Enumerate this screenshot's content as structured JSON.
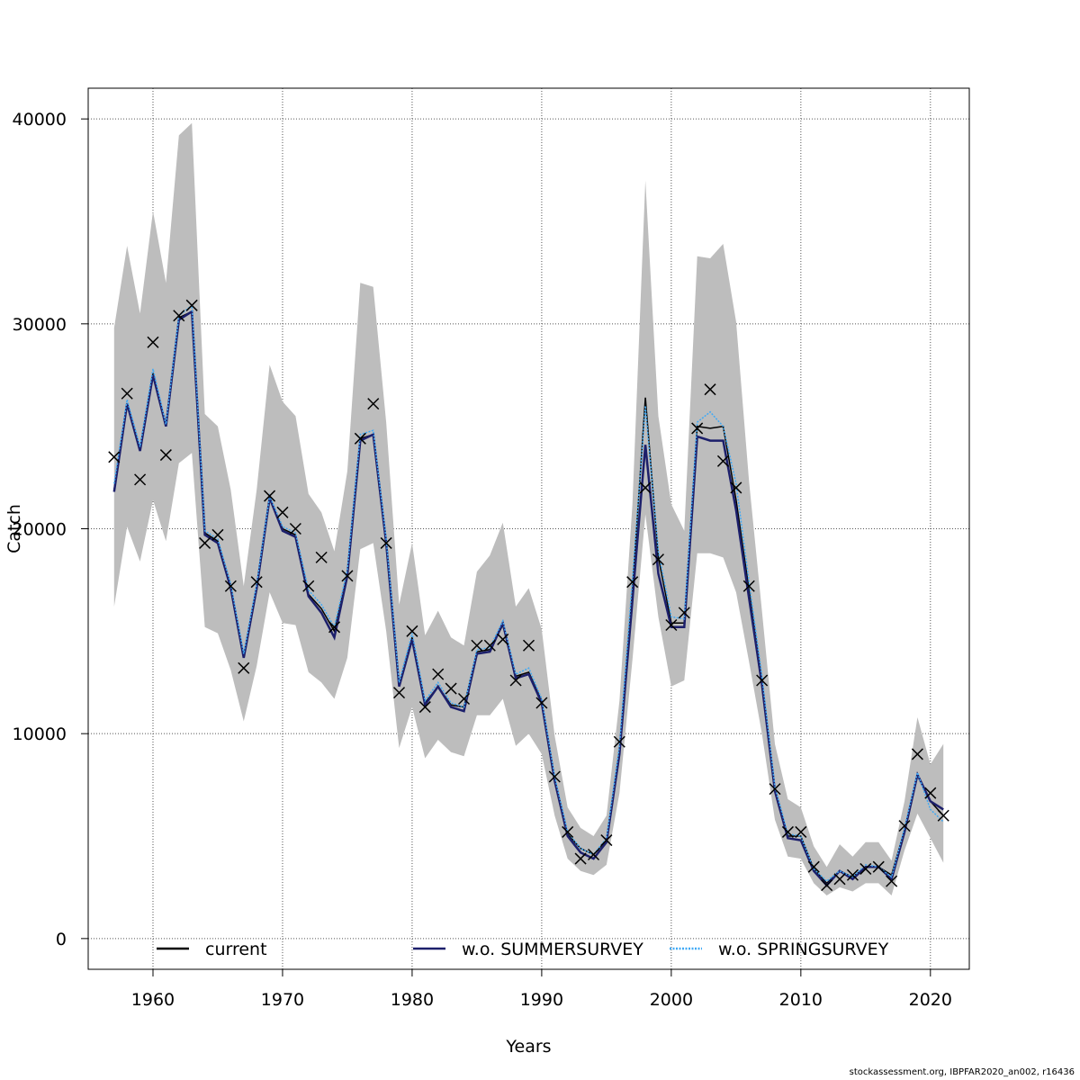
{
  "footer": "stockassessment.org, IBPFAR2020_an002, r16436",
  "chart_data": {
    "type": "line",
    "title": "",
    "xlabel": "Years",
    "ylabel": "Catch",
    "xlim": [
      1955,
      2023
    ],
    "ylim": [
      -1500,
      41500
    ],
    "x_ticks": [
      1960,
      1970,
      1980,
      1990,
      2000,
      2010,
      2020
    ],
    "y_ticks": [
      0,
      10000,
      20000,
      30000,
      40000
    ],
    "grid": true,
    "legend_position": "bottom",
    "x": [
      1957,
      1958,
      1959,
      1960,
      1961,
      1962,
      1963,
      1964,
      1965,
      1966,
      1967,
      1968,
      1969,
      1970,
      1971,
      1972,
      1973,
      1974,
      1975,
      1976,
      1977,
      1978,
      1979,
      1980,
      1981,
      1982,
      1983,
      1984,
      1985,
      1986,
      1987,
      1988,
      1989,
      1990,
      1991,
      1992,
      1993,
      1994,
      1995,
      1996,
      1997,
      1998,
      1999,
      2000,
      2001,
      2002,
      2003,
      2004,
      2005,
      2006,
      2007,
      2008,
      2009,
      2010,
      2011,
      2012,
      2013,
      2014,
      2015,
      2016,
      2017,
      2018,
      2019,
      2020,
      2021
    ],
    "series": [
      {
        "name": "current",
        "color": "#000000",
        "style": "solid",
        "values": [
          21900,
          26100,
          23900,
          27600,
          25000,
          30300,
          30600,
          19800,
          19400,
          17200,
          13700,
          17200,
          21500,
          20000,
          19700,
          16800,
          16100,
          15000,
          17800,
          24400,
          24600,
          19400,
          12400,
          14700,
          11500,
          12300,
          11400,
          11300,
          14000,
          14100,
          15300,
          12800,
          13000,
          11600,
          7800,
          5100,
          4400,
          4100,
          4800,
          9200,
          17000,
          26400,
          18600,
          15400,
          15400,
          25000,
          24900,
          25000,
          21400,
          17000,
          12600,
          7300,
          5000,
          5000,
          3400,
          2700,
          3300,
          3000,
          3500,
          3500,
          3100,
          5300,
          8000,
          6700,
          6000
        ]
      },
      {
        "name": "w.o. SUMMERSURVEY",
        "color": "#1c1f6b",
        "style": "solid",
        "values": [
          21800,
          26100,
          23800,
          27500,
          25000,
          30200,
          30600,
          19700,
          19300,
          17100,
          13700,
          17100,
          21500,
          19900,
          19600,
          16700,
          15900,
          14700,
          17700,
          24300,
          24600,
          19300,
          12300,
          14600,
          11400,
          12300,
          11300,
          11100,
          13900,
          14000,
          15400,
          12700,
          12900,
          11500,
          7700,
          5000,
          4200,
          3900,
          4700,
          9000,
          16500,
          24100,
          17800,
          15200,
          15200,
          24500,
          24300,
          24300,
          20900,
          16600,
          12400,
          7200,
          4900,
          4800,
          3300,
          2600,
          3300,
          2900,
          3500,
          3500,
          2900,
          5200,
          8000,
          6700,
          6300
        ]
      },
      {
        "name": "w.o. SPRINGSURVEY",
        "color": "#3fa9f5",
        "style": "dotted",
        "values": [
          22200,
          26300,
          24000,
          27800,
          25100,
          30400,
          30900,
          19900,
          19500,
          17300,
          13900,
          17300,
          21600,
          20100,
          19800,
          17000,
          16300,
          15200,
          18000,
          24600,
          24800,
          19500,
          12500,
          14900,
          11600,
          12500,
          11500,
          11300,
          14100,
          14200,
          15500,
          12900,
          13200,
          11700,
          7900,
          5200,
          4400,
          4100,
          4900,
          9400,
          17500,
          26000,
          18900,
          15700,
          15600,
          25200,
          25700,
          25000,
          22200,
          17400,
          12800,
          7400,
          5100,
          5000,
          3400,
          2800,
          3300,
          3000,
          3600,
          3500,
          3000,
          5400,
          8100,
          6300,
          5700
        ]
      }
    ],
    "ci_lower": [
      16200,
      20100,
      18400,
      21400,
      19400,
      23200,
      23700,
      15200,
      14900,
      13100,
      10600,
      13300,
      16900,
      15400,
      15300,
      13000,
      12500,
      11700,
      13700,
      19000,
      19300,
      15000,
      9300,
      11300,
      8800,
      9700,
      9100,
      8900,
      10900,
      10900,
      11700,
      9400,
      10000,
      9000,
      6000,
      3900,
      3300,
      3100,
      3600,
      7100,
      13600,
      20700,
      15700,
      12300,
      12600,
      18800,
      18800,
      18600,
      16900,
      13500,
      10000,
      5800,
      4000,
      3900,
      2700,
      2100,
      2500,
      2300,
      2700,
      2700,
      2100,
      4300,
      6100,
      4900,
      3700
    ],
    "ci_upper": [
      29800,
      33800,
      30500,
      35500,
      32000,
      39200,
      39800,
      25600,
      25000,
      21900,
      17200,
      21900,
      28000,
      26200,
      25500,
      21700,
      20800,
      18900,
      22800,
      32000,
      31800,
      25200,
      16300,
      19300,
      14800,
      16000,
      14700,
      14300,
      17900,
      18700,
      20300,
      16200,
      17100,
      15100,
      9900,
      6400,
      5400,
      5000,
      6000,
      11600,
      21200,
      37000,
      25500,
      21200,
      19900,
      33300,
      33200,
      33900,
      30100,
      22300,
      16000,
      9500,
      6800,
      6400,
      4500,
      3500,
      4600,
      4000,
      4700,
      4700,
      3800,
      6700,
      10800,
      8500,
      9500
    ],
    "observed_label": "observed",
    "observed": [
      23500,
      26600,
      22400,
      29100,
      23600,
      30400,
      30900,
      19300,
      19700,
      17200,
      13200,
      17400,
      21600,
      20800,
      20000,
      17200,
      18600,
      15200,
      17700,
      24400,
      26100,
      19300,
      12000,
      15000,
      11300,
      12900,
      12200,
      11700,
      14300,
      14300,
      14600,
      12600,
      14300,
      11500,
      7900,
      5200,
      3900,
      4100,
      4800,
      9600,
      17400,
      22000,
      18500,
      15300,
      15900,
      24900,
      26800,
      23300,
      22000,
      17200,
      12600,
      7300,
      5200,
      5200,
      3500,
      2600,
      2900,
      3100,
      3400,
      3500,
      2800,
      5500,
      9000,
      7100,
      6000
    ]
  }
}
